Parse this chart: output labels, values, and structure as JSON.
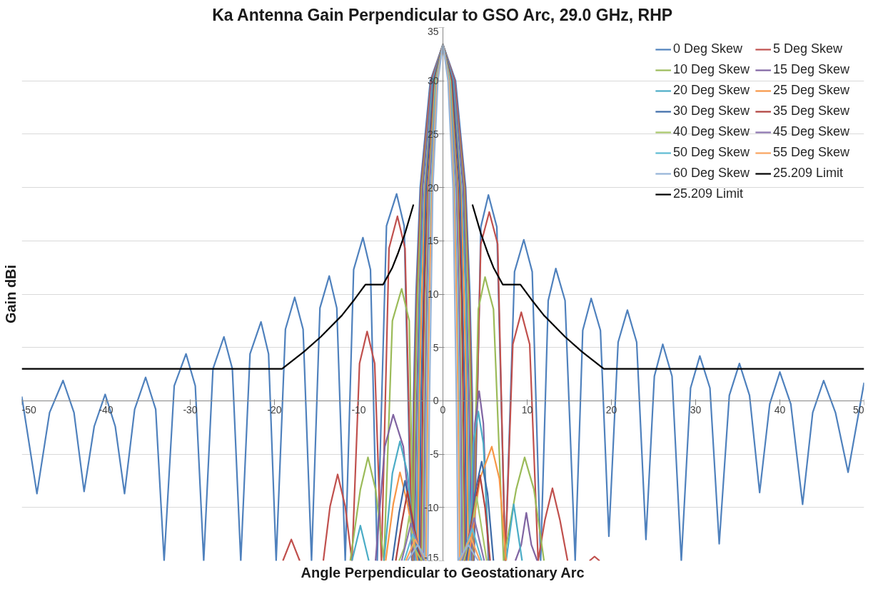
{
  "chart_data": {
    "type": "line",
    "title": "Ka Antenna Gain Perpendicular to GSO Arc, 29.0 GHz, RHP",
    "xlabel": "Angle Perpendicular to Geostationary Arc",
    "ylabel": "Gain dBi",
    "xlim": [
      -50,
      50
    ],
    "ylim": [
      -15,
      35
    ],
    "xticks": [
      -50,
      -40,
      -30,
      -20,
      -10,
      0,
      10,
      20,
      30,
      40,
      50
    ],
    "yticks": [
      -15,
      -10,
      -5,
      0,
      5,
      10,
      15,
      20,
      25,
      30,
      35
    ],
    "grid": "y",
    "legend": "top right",
    "series": [
      {
        "name": "0 Deg Skew",
        "color": "#4f81bd",
        "x": [
          -50,
          -48.2,
          -46.7,
          -45.1,
          -43.8,
          -42.6,
          -41.4,
          -40.1,
          -38.9,
          -37.8,
          -36.6,
          -35.3,
          -34.1,
          -33.1,
          -31.9,
          -30.5,
          -29.4,
          -28.4,
          -27.3,
          -26.0,
          -25.0,
          -24.0,
          -22.9,
          -21.6,
          -20.7,
          -19.8,
          -18.7,
          -17.6,
          -16.6,
          -15.6,
          -14.6,
          -13.5,
          -12.6,
          -11.6,
          -10.6,
          -9.5,
          -8.6,
          -7.8,
          -6.7,
          -5.5,
          -4.6,
          -3.7,
          -3.5,
          -3.2,
          -2.7,
          -1.5,
          0,
          1.5,
          2.7,
          3.2,
          3.5,
          3.7,
          4.5,
          5.4,
          6.4,
          7.4,
          8.5,
          9.6,
          10.6,
          11.6,
          12.5,
          13.4,
          14.5,
          15.7,
          16.6,
          17.6,
          18.7,
          19.7,
          20.8,
          21.9,
          23.0,
          24.1,
          25.1,
          26.1,
          27.2,
          28.3,
          29.4,
          30.5,
          31.7,
          32.8,
          34.0,
          35.2,
          36.4,
          37.6,
          38.8,
          40.0,
          41.3,
          42.7,
          43.9,
          45.2,
          46.6,
          48.1,
          50
        ],
        "values": [
          0.4,
          -8.7,
          -1.1,
          1.9,
          -1.1,
          -8.5,
          -2.4,
          0.6,
          -2.4,
          -8.7,
          -0.8,
          2.2,
          -0.8,
          -15,
          1.4,
          4.4,
          1.4,
          -15,
          3.0,
          6.0,
          3.0,
          -15,
          4.4,
          7.4,
          4.4,
          -15,
          6.7,
          9.7,
          6.7,
          -15,
          8.7,
          11.7,
          8.7,
          -15,
          12.3,
          15.3,
          12.3,
          -15,
          16.4,
          19.4,
          16.4,
          -15,
          0,
          10,
          20,
          30,
          33.4,
          30,
          20,
          10,
          0,
          -15,
          16.3,
          19.3,
          16.3,
          -15,
          12.1,
          15.1,
          12.1,
          -15,
          9.4,
          12.4,
          9.4,
          -15,
          6.6,
          9.6,
          6.6,
          -12.7,
          5.5,
          8.5,
          5.5,
          -13.0,
          2.3,
          5.3,
          2.3,
          -15,
          1.2,
          4.2,
          1.2,
          -13.4,
          0.5,
          3.5,
          0.5,
          -8.6,
          -0.3,
          2.7,
          -0.3,
          -9.7,
          -1.1,
          1.9,
          -1.1,
          -6.7,
          1.7
        ]
      },
      {
        "name": "5 Deg Skew",
        "color": "#c0504d",
        "x": [
          -19.0,
          -18.0,
          -17.0,
          -15.6,
          -14.2,
          -13.4,
          -12.5,
          -11.6,
          -10.8,
          -9.9,
          -9.0,
          -8.1,
          -7.3,
          -6.4,
          -5.4,
          -4.5,
          -3.6,
          -3.4,
          -3.1,
          -2.6,
          -1.4,
          0,
          1.4,
          2.6,
          3.1,
          3.4,
          3.6,
          4.5,
          5.5,
          6.5,
          7.4,
          8.3,
          9.3,
          10.3,
          11.3,
          12.1,
          13.0,
          13.9,
          14.8,
          16.1,
          17.4,
          18.0,
          18.6
        ],
        "values": [
          -15,
          -13.0,
          -15,
          null,
          -15,
          -9.9,
          -6.9,
          -9.9,
          -15,
          3.5,
          6.5,
          3.5,
          -15,
          14.3,
          17.3,
          14.3,
          -15,
          0,
          10,
          20,
          30,
          33.4,
          30,
          20,
          10,
          0,
          -15,
          14.7,
          17.7,
          14.7,
          -15,
          5.3,
          8.3,
          5.3,
          -15,
          -11.2,
          -8.2,
          -11.2,
          -15,
          null,
          -15,
          -14.6,
          -15
        ]
      },
      {
        "name": "10 Deg Skew",
        "color": "#9bbb59",
        "x": [
          -11.0,
          -9.8,
          -8.9,
          -8.0,
          -7.0,
          -6.0,
          -4.9,
          -4.0,
          -3.5,
          -3.3,
          -3.0,
          -2.5,
          -1.3,
          0,
          1.3,
          2.5,
          3.0,
          3.3,
          3.5,
          4.2,
          5.0,
          6.0,
          7.2,
          8.7,
          9.7,
          10.8,
          12.0
        ],
        "values": [
          -15,
          -8.3,
          -5.3,
          -8.3,
          -15,
          7.5,
          10.5,
          7.5,
          -15,
          0,
          10,
          20,
          30,
          33.4,
          30,
          20,
          10,
          0,
          -15,
          8.6,
          11.6,
          8.6,
          -15,
          -8.3,
          -5.3,
          -8.3,
          -15
        ]
      },
      {
        "name": "15 Deg Skew",
        "color": "#8064a2",
        "x": [
          -8.0,
          -6.9,
          -5.9,
          -4.7,
          -3.4,
          -3.1,
          -2.8,
          -2.4,
          -1.3,
          0,
          1.3,
          2.4,
          2.8,
          3.1,
          3.4,
          3.8,
          4.3,
          4.8,
          5.4,
          7.0,
          8.6,
          9.3,
          9.9,
          10.5,
          11.2
        ],
        "values": [
          -15,
          -4.3,
          -1.3,
          -4.3,
          -15,
          0,
          10,
          20,
          30,
          33.4,
          30,
          20,
          10,
          0,
          -15,
          -2.1,
          0.9,
          -2.1,
          -15,
          null,
          -15,
          -13.5,
          -10.5,
          -13.5,
          -15
        ]
      },
      {
        "name": "20 Deg Skew",
        "color": "#4bacc6",
        "x": [
          -10.8,
          -9.8,
          -8.8,
          -7.9,
          -7.0,
          -6.0,
          -5.1,
          -4.2,
          -3.2,
          -2.9,
          -2.7,
          -2.2,
          -1.2,
          0,
          1.2,
          2.2,
          2.7,
          2.9,
          3.2,
          3.6,
          4.2,
          4.8,
          5.5,
          6.5,
          7.5,
          8.4,
          9.4
        ],
        "values": [
          -15,
          -11.7,
          -15,
          null,
          -15,
          -6.8,
          -3.8,
          -6.8,
          -15,
          0,
          10,
          20,
          30,
          33.4,
          30,
          20,
          10,
          0,
          -15,
          -4.0,
          -1.0,
          -4.0,
          -15,
          null,
          -15,
          -9.7,
          -15
        ]
      },
      {
        "name": "25 Deg Skew",
        "color": "#f79646",
        "x": [
          -6.8,
          -5.9,
          -5.1,
          -4.2,
          -3.0,
          -2.8,
          -2.5,
          -2.1,
          -1.1,
          0,
          1.1,
          2.1,
          2.5,
          2.8,
          3.0,
          4.4,
          5.8,
          6.7,
          7.5
        ],
        "values": [
          -15,
          -9.7,
          -6.7,
          -9.7,
          -15,
          0,
          10,
          20,
          30,
          33.4,
          30,
          20,
          10,
          0,
          -15,
          -7.3,
          -4.3,
          -7.3,
          -15
        ]
      },
      {
        "name": "30 Deg Skew",
        "color": "#3d6ba8",
        "x": [
          -6.0,
          -5.2,
          -4.5,
          -3.8,
          -2.8,
          -2.6,
          -2.3,
          -2.0,
          -1.1,
          0,
          1.1,
          2.0,
          2.3,
          2.6,
          2.8,
          3.8,
          4.6,
          5.3,
          6.0
        ],
        "values": [
          -15,
          -10.5,
          -7.5,
          -10.5,
          -15,
          0,
          10,
          20,
          30,
          33.4,
          30,
          20,
          10,
          0,
          -15,
          -8.7,
          -5.7,
          -8.7,
          -15
        ]
      },
      {
        "name": "35 Deg Skew",
        "color": "#b0403d",
        "x": [
          -5.6,
          -4.9,
          -4.2,
          -3.5,
          -2.6,
          -2.4,
          -2.2,
          -1.8,
          -1.0,
          0,
          1.0,
          1.8,
          2.2,
          2.4,
          2.6,
          3.7,
          4.4,
          5.0,
          5.6
        ],
        "values": [
          -15,
          -11.5,
          -8.5,
          -11.5,
          -15,
          0,
          10,
          20,
          30,
          33.4,
          30,
          20,
          10,
          0,
          -15,
          -10.0,
          -7.0,
          -10.0,
          -15
        ]
      },
      {
        "name": "40 Deg Skew",
        "color": "#a8c66a",
        "x": [
          -5.2,
          -4.6,
          -4.0,
          -3.4,
          -2.5,
          -2.2,
          -2.0,
          -1.7,
          -0.9,
          0,
          0.9,
          1.7,
          2.0,
          2.2,
          2.5,
          3.4,
          4.0,
          4.6,
          5.2
        ],
        "values": [
          -15,
          -13.8,
          -10.8,
          -13.8,
          -15,
          0,
          10,
          20,
          30,
          33.4,
          30,
          20,
          10,
          0,
          -15,
          -12.0,
          -9.0,
          -12.0,
          -15
        ]
      },
      {
        "name": "45 Deg Skew",
        "color": "#8a73ae",
        "x": [
          -4.9,
          -3.8,
          -2.3,
          -2.1,
          -1.9,
          -1.6,
          -0.8,
          0,
          0.8,
          1.6,
          1.9,
          2.1,
          2.3,
          3.7,
          4.9
        ],
        "values": [
          -15,
          -11.5,
          -15,
          0,
          10,
          20,
          30,
          33.4,
          30,
          20,
          10,
          0,
          -15,
          -11.0,
          -15
        ]
      },
      {
        "name": "50 Deg Skew",
        "color": "#5ebbd3",
        "x": [
          -4.6,
          -3.6,
          -2.1,
          -1.9,
          -1.7,
          -1.4,
          -0.8,
          0,
          0.8,
          1.4,
          1.7,
          1.9,
          2.1,
          3.5,
          4.6
        ],
        "values": [
          -15,
          -12.5,
          -15,
          0,
          10,
          20,
          30,
          33.4,
          30,
          20,
          10,
          0,
          -15,
          -12.0,
          -15
        ]
      },
      {
        "name": "55 Deg Skew",
        "color": "#f9a45f",
        "x": [
          -4.4,
          -3.3,
          -2.0,
          -1.8,
          -1.6,
          -1.3,
          -0.7,
          0,
          0.7,
          1.3,
          1.6,
          1.8,
          2.0,
          3.3,
          4.4
        ],
        "values": [
          -15,
          -13.0,
          -15,
          0,
          10,
          20,
          30,
          33.4,
          30,
          20,
          10,
          0,
          -15,
          -12.8,
          -15
        ]
      },
      {
        "name": "60 Deg Skew",
        "color": "#95b3d7",
        "x": [
          -4.2,
          -3.0,
          -1.8,
          -1.6,
          -1.4,
          -1.2,
          -0.6,
          0,
          0.6,
          1.2,
          1.4,
          1.6,
          1.8,
          3.0,
          4.2
        ],
        "values": [
          -15,
          -13.5,
          -15,
          0,
          10,
          20,
          30,
          33.4,
          30,
          20,
          10,
          0,
          -15,
          -13.5,
          -15
        ]
      },
      {
        "name": "25.209 Limit",
        "color": "#000000",
        "x": [
          -50,
          -19.1,
          -16.5,
          -14.5,
          -12.0,
          -10.5,
          -9.2,
          -7.1,
          -6.0,
          -5.3,
          -4.5,
          -3.5
        ],
        "values": [
          3.0,
          3.0,
          4.6,
          6.0,
          8.0,
          9.5,
          10.9,
          10.9,
          12.5,
          13.9,
          15.7,
          18.4
        ]
      },
      {
        "name": "25.209 Limit",
        "color": "#000000",
        "x": [
          3.5,
          4.5,
          5.3,
          6.0,
          7.1,
          9.2,
          10.5,
          12.0,
          14.5,
          16.5,
          19.1,
          50
        ],
        "values": [
          18.4,
          15.7,
          13.9,
          12.5,
          10.9,
          10.9,
          9.5,
          8.0,
          6.0,
          4.6,
          3.0,
          3.0
        ]
      }
    ]
  }
}
